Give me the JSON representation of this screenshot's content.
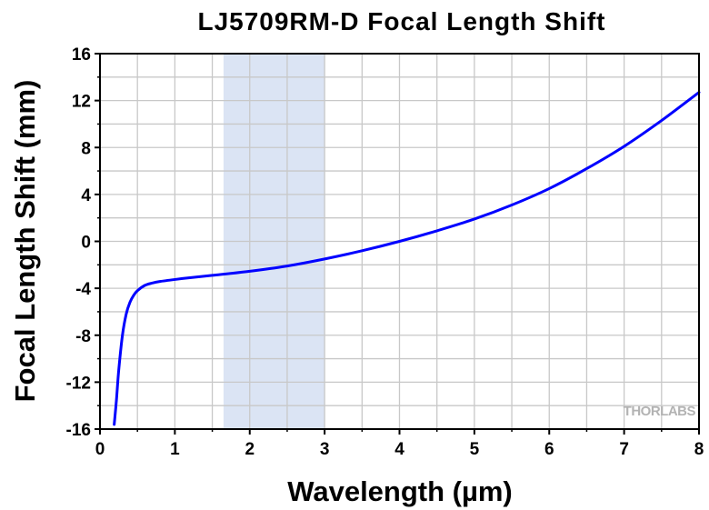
{
  "chart_data": {
    "type": "line",
    "title": "LJ5709RM-D Focal Length Shift",
    "xlabel": "Wavelength (µm)",
    "ylabel": "Focal Length Shift (mm)",
    "xlim": [
      0,
      8
    ],
    "ylim": [
      -16,
      16
    ],
    "x_ticks": [
      "0",
      "1",
      "2",
      "3",
      "4",
      "5",
      "6",
      "7",
      "8"
    ],
    "y_ticks": [
      "-16",
      "-12",
      "-8",
      "-4",
      "0",
      "4",
      "8",
      "12",
      "16"
    ],
    "x_tick_values": [
      0,
      1,
      2,
      3,
      4,
      5,
      6,
      7,
      8
    ],
    "y_tick_values": [
      -16,
      -12,
      -8,
      -4,
      0,
      4,
      8,
      12,
      16
    ],
    "grid": true,
    "highlight_band": {
      "x_range": [
        1.65,
        3.0
      ],
      "color": "#dbe4f4"
    },
    "series": [
      {
        "color": "#0000ff",
        "x": [
          0.19,
          0.22,
          0.25,
          0.3,
          0.35,
          0.4,
          0.45,
          0.5,
          0.6,
          0.7,
          0.8,
          1.0,
          1.2,
          1.5,
          2.0,
          2.5,
          3.0,
          3.5,
          4.0,
          4.5,
          5.0,
          5.5,
          6.0,
          6.5,
          7.0,
          7.5,
          8.0
        ],
        "y": [
          -15.6,
          -13.5,
          -11.0,
          -8.0,
          -6.2,
          -5.2,
          -4.6,
          -4.2,
          -3.75,
          -3.55,
          -3.42,
          -3.25,
          -3.1,
          -2.9,
          -2.55,
          -2.1,
          -1.5,
          -0.8,
          0.0,
          0.9,
          1.9,
          3.1,
          4.5,
          6.2,
          8.1,
          10.3,
          12.7
        ]
      }
    ]
  },
  "watermark": {
    "text": "THORLABS"
  },
  "colors": {
    "plot_border": "#000000",
    "grid": "#c8c8c8",
    "line": "#0000ff",
    "band": "#dbe4f4"
  }
}
